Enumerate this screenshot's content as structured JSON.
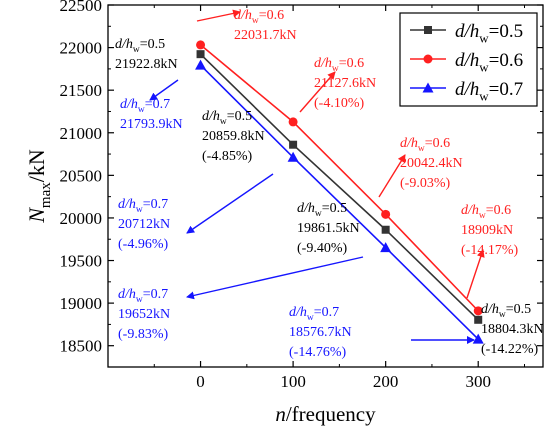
{
  "chart_data": {
    "type": "line",
    "x": [
      0,
      100,
      200,
      300
    ],
    "xlabel": "n/frequency",
    "ylabel": "Nmax/kN",
    "xlim": [
      -100,
      370
    ],
    "ylim": [
      18250,
      22500
    ],
    "x_ticks": [
      0,
      100,
      200,
      300
    ],
    "y_ticks": [
      18500,
      19000,
      19500,
      20000,
      20500,
      21000,
      21500,
      22000,
      22500
    ],
    "legend_position": "top-right",
    "grid": false,
    "series": [
      {
        "name": "d/hw=0.5",
        "color": "#333333",
        "marker": "square",
        "values": [
          21922.8,
          20859.8,
          19861.5,
          18804.3
        ],
        "labels": [
          "d/hw=0.5|21922.8kN",
          "d/hw=0.5|20859.8kN|(-4.85%)",
          "d/hw=0.5|19861.5kN|(-9.40%)",
          "d/hw=0.5|18804.3kN|(-14.22%)"
        ]
      },
      {
        "name": "d/hw=0.6",
        "color": "#ff2020",
        "marker": "circle",
        "values": [
          22031.7,
          21127.6,
          20042.4,
          18909
        ],
        "labels": [
          "d/hw=0.6|22031.7kN",
          "d/hw=0.6|21127.6kN|(-4.10%)",
          "d/hw=0.6|20042.4kN|(-9.03%)",
          "d/hw=0.6|18909kN|(-14.17%)"
        ]
      },
      {
        "name": "d/hw=0.7",
        "color": "#1515ff",
        "marker": "triangle",
        "values": [
          21793.9,
          20712,
          19652,
          18576.7
        ],
        "labels": [
          "d/hw=0.7|21793.9kN",
          "d/hw=0.7|20712kN|(-4.96%)",
          "d/hw=0.7|19652kN|(-9.83%)",
          "d/hw=0.7|18576.7kN|(-14.76%)"
        ]
      }
    ]
  }
}
